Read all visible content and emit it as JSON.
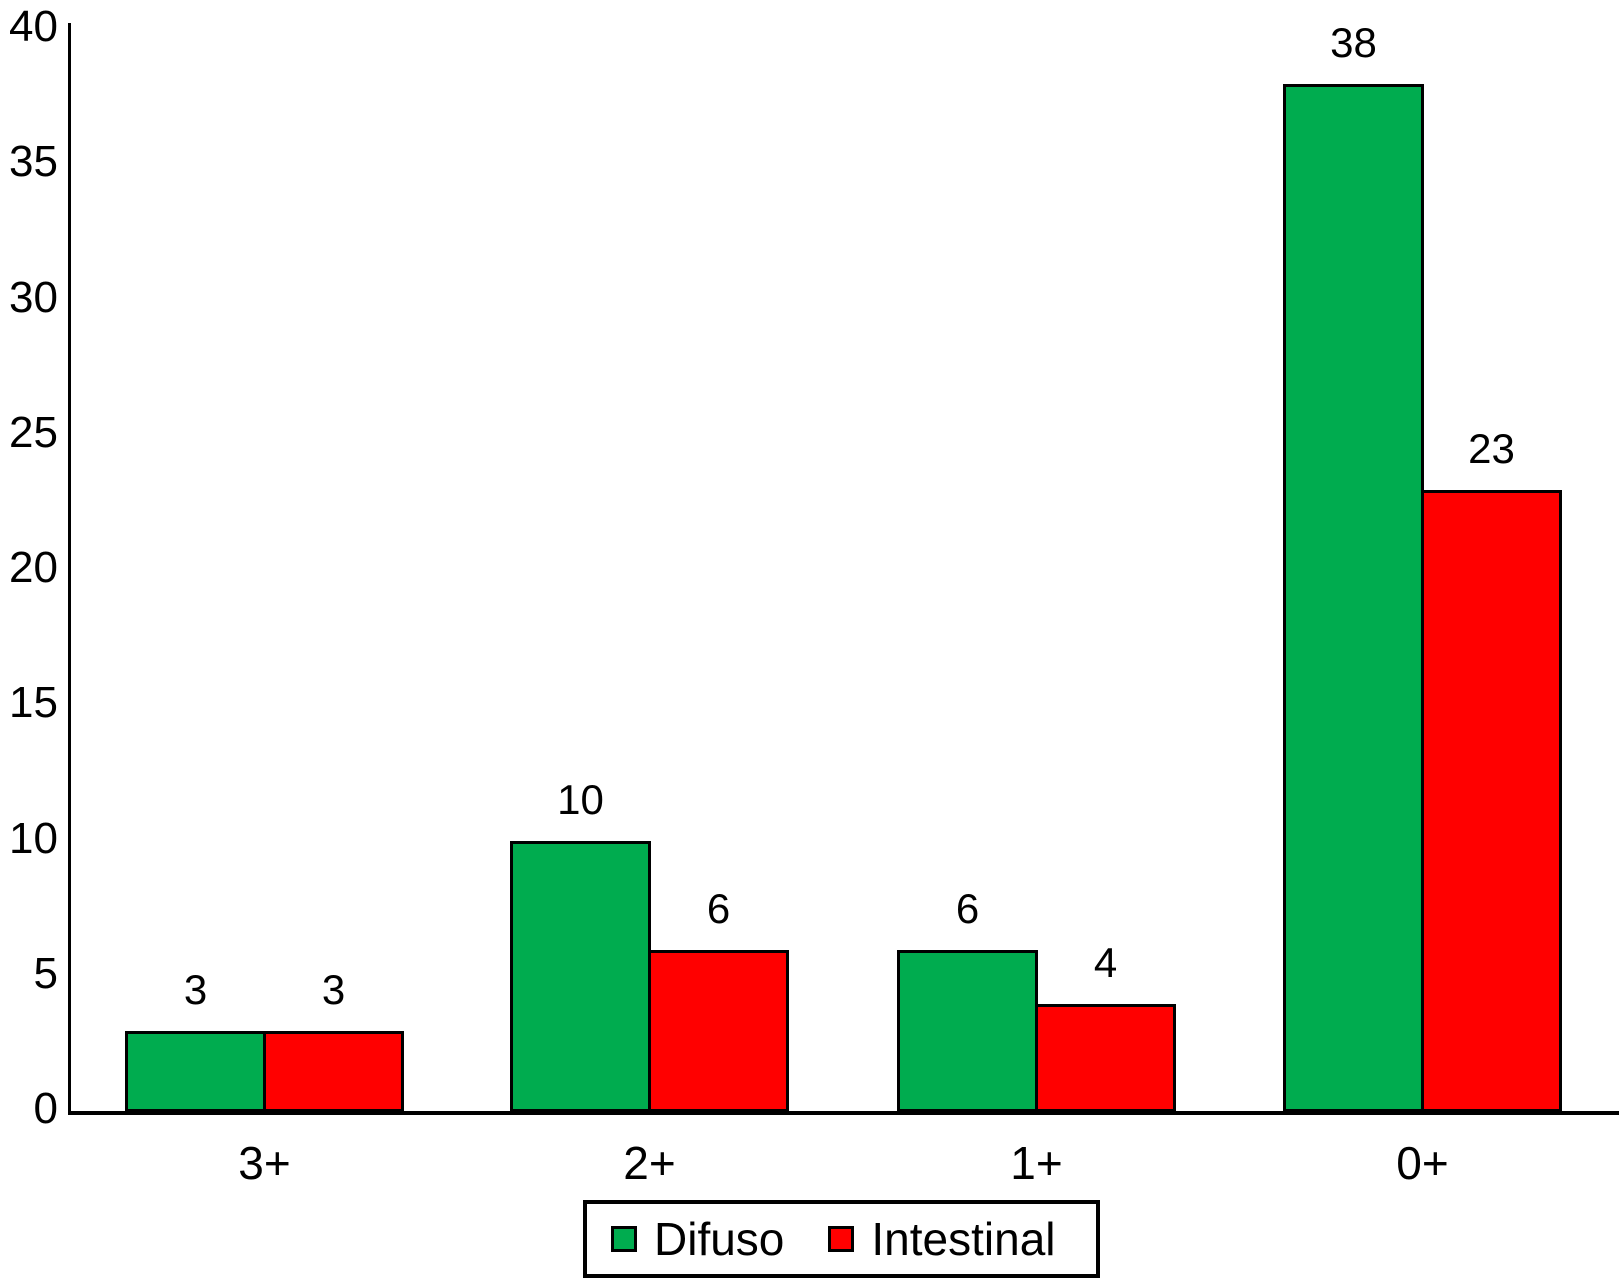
{
  "chart_data": {
    "type": "bar",
    "title": "",
    "xlabel": "",
    "ylabel": "",
    "categories": [
      "3+",
      "2+",
      "1+",
      "0+"
    ],
    "series": [
      {
        "name": "Difuso",
        "color": "#00AC4F",
        "values": [
          3,
          10,
          6,
          38
        ]
      },
      {
        "name": "Intestinal",
        "color": "#FF0000",
        "values": [
          3,
          6,
          4,
          23
        ]
      }
    ],
    "ylim": [
      0,
      40
    ],
    "yticks": [
      0,
      5,
      10,
      15,
      20,
      25,
      30,
      35,
      40
    ],
    "grid": false,
    "bar_value_labels_shown": true,
    "legend_position": "bottom",
    "axis_color": "#000000",
    "bar_border_color": "#000000",
    "background_color": "#FFFFFF"
  }
}
